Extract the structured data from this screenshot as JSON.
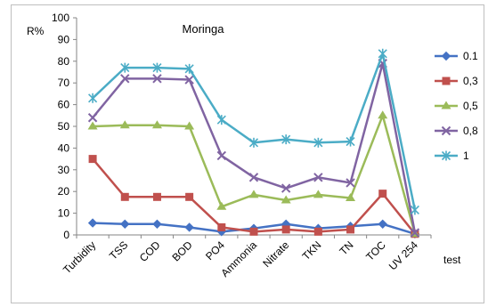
{
  "chart_data": {
    "type": "line",
    "title": "Moringa",
    "xlabel": "test",
    "ylabel": "R%",
    "ylim": [
      0,
      100
    ],
    "yticks": [
      0,
      10,
      20,
      30,
      40,
      50,
      60,
      70,
      80,
      90,
      100
    ],
    "grid": false,
    "legend_position": "right",
    "categories": [
      "Turbidity",
      "TSS",
      "COD",
      "BOD",
      "PO4",
      "Ammonia",
      "Nitrate",
      "TKN",
      "TN",
      "TOC",
      "UV 254"
    ],
    "series": [
      {
        "name": "0.1",
        "color": "#4472C4",
        "marker": "diamond",
        "values": [
          5.5,
          5,
          5,
          3.5,
          1.5,
          3,
          5,
          3,
          4,
          5,
          0.5
        ]
      },
      {
        "name": "0,3",
        "color": "#C0504D",
        "marker": "square",
        "values": [
          35,
          17.5,
          17.5,
          17.5,
          3.5,
          1.5,
          2.5,
          1.5,
          2.5,
          19,
          0.5
        ]
      },
      {
        "name": "0,5",
        "color": "#9BBB59",
        "marker": "triangle",
        "values": [
          50,
          50.5,
          50.5,
          50,
          13,
          18.5,
          16,
          18.5,
          17,
          55,
          0.5
        ]
      },
      {
        "name": "0,8",
        "color": "#8064A2",
        "marker": "x",
        "values": [
          54,
          72,
          72,
          71.5,
          36.5,
          26.5,
          21.5,
          26.5,
          24,
          79,
          1
        ]
      },
      {
        "name": "1",
        "color": "#4BACC6",
        "marker": "star",
        "values": [
          63,
          77,
          77,
          76.5,
          53,
          42.5,
          44,
          42.5,
          43,
          83.5,
          11.5
        ]
      }
    ]
  }
}
